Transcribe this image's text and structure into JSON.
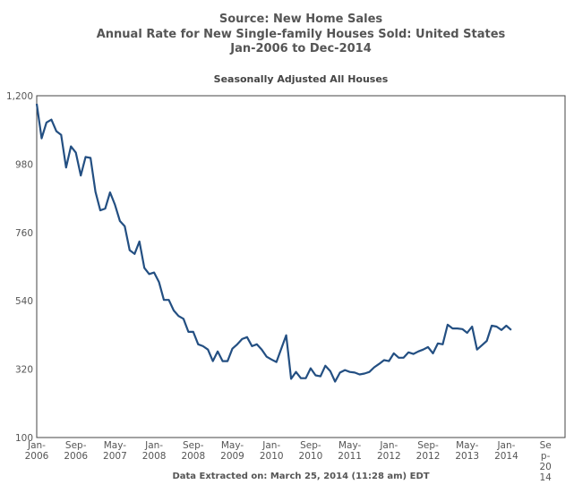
{
  "chart_data": {
    "type": "line",
    "title": [
      "Source: New Home Sales",
      "Annual Rate for New Single-family Houses Sold: United States",
      "Jan-2006 to Dec-2014"
    ],
    "subtitle": "Seasonally Adjusted All Houses",
    "footer": "Data Extracted on: March 25, 2014 (11:28 am) EDT",
    "xlabel": "",
    "ylabel": "",
    "ylim": [
      100,
      1200
    ],
    "yticks": [
      100,
      320,
      540,
      760,
      980,
      1200
    ],
    "ytick_labels": [
      "100",
      "320",
      "540",
      "760",
      "980",
      "1,200"
    ],
    "xlim_months": [
      0,
      108
    ],
    "xticks": [
      {
        "month": 0,
        "label": [
          "Jan-",
          "2006"
        ]
      },
      {
        "month": 8,
        "label": [
          "Sep-",
          "2006"
        ]
      },
      {
        "month": 16,
        "label": [
          "May-",
          "2007"
        ]
      },
      {
        "month": 24,
        "label": [
          "Jan-",
          "2008"
        ]
      },
      {
        "month": 32,
        "label": [
          "Sep-",
          "2008"
        ]
      },
      {
        "month": 40,
        "label": [
          "May-",
          "2009"
        ]
      },
      {
        "month": 48,
        "label": [
          "Jan-",
          "2010"
        ]
      },
      {
        "month": 56,
        "label": [
          "Sep-",
          "2010"
        ]
      },
      {
        "month": 64,
        "label": [
          "May-",
          "2011"
        ]
      },
      {
        "month": 72,
        "label": [
          "Jan-",
          "2012"
        ]
      },
      {
        "month": 80,
        "label": [
          "Sep-",
          "2012"
        ]
      },
      {
        "month": 88,
        "label": [
          "May-",
          "2013"
        ]
      },
      {
        "month": 96,
        "label": [
          "Jan-",
          "2014"
        ]
      },
      {
        "month": 104,
        "label": [
          "Se",
          "p-",
          "20",
          "14"
        ]
      }
    ],
    "grid": false,
    "series": [
      {
        "name": "Seasonally Adjusted All Houses",
        "color": "#234f82",
        "start": "Jan-2006",
        "values": [
          1174,
          1063,
          1114,
          1123,
          1086,
          1074,
          969,
          1037,
          1017,
          943,
          1003,
          1000,
          891,
          831,
          837,
          889,
          849,
          797,
          780,
          703,
          691,
          731,
          646,
          626,
          631,
          600,
          543,
          543,
          509,
          491,
          482,
          440,
          440,
          400,
          394,
          383,
          346,
          377,
          346,
          346,
          386,
          400,
          417,
          423,
          394,
          400,
          383,
          360,
          351,
          343,
          386,
          429,
          289,
          311,
          291,
          291,
          323,
          300,
          297,
          331,
          314,
          280,
          309,
          317,
          311,
          309,
          303,
          306,
          311,
          326,
          337,
          349,
          346,
          371,
          357,
          357,
          374,
          369,
          377,
          383,
          391,
          371,
          403,
          400,
          463,
          451,
          451,
          449,
          437,
          457,
          383,
          397,
          411,
          460,
          457,
          446,
          460,
          446
        ]
      }
    ]
  }
}
